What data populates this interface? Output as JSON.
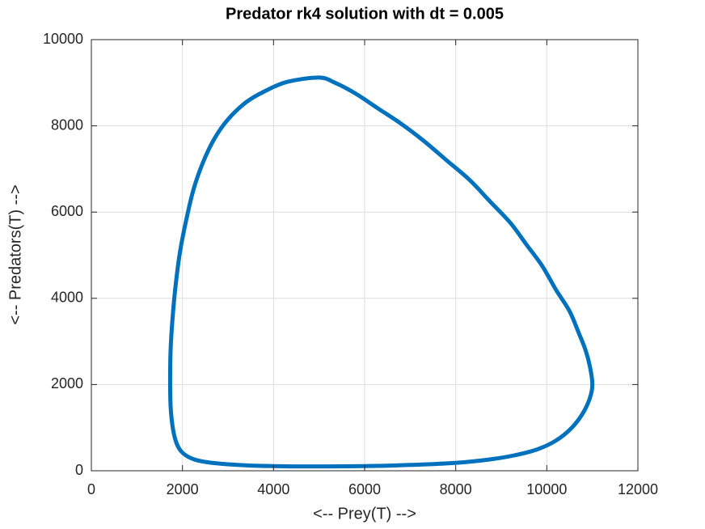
{
  "chart_data": {
    "type": "line",
    "title": "Predator rk4 solution with dt = 0.005",
    "xlabel": "<-- Prey(T) -->",
    "ylabel": "<-- Predators(T) -->",
    "xlim": [
      0,
      12000
    ],
    "ylim": [
      0,
      10000
    ],
    "xticks": [
      0,
      2000,
      4000,
      6000,
      8000,
      10000,
      12000
    ],
    "yticks": [
      0,
      2000,
      4000,
      6000,
      8000,
      10000
    ],
    "xtick_labels": [
      "0",
      "2000",
      "4000",
      "6000",
      "8000",
      "10000",
      "12000"
    ],
    "ytick_labels": [
      "0",
      "2000",
      "4000",
      "6000",
      "8000",
      "10000"
    ],
    "grid": true,
    "series": [
      {
        "color": "#0072bd",
        "x": [
          5000,
          4300,
          3800,
          3400,
          3000,
          2700,
          2450,
          2250,
          2100,
          1950,
          1850,
          1780,
          1740,
          1730,
          1740,
          1780,
          1850,
          1950,
          2100,
          2300,
          2600,
          3000,
          3500,
          4000,
          4600,
          5200,
          5800,
          6400,
          7000,
          7600,
          8200,
          8800,
          9300,
          9800,
          10200,
          10550,
          10800,
          10950,
          11000,
          10950,
          10850,
          10700,
          10500,
          10200,
          9900,
          9550,
          9200,
          8750,
          8300,
          7800,
          7300,
          6800,
          6300,
          5800,
          5350,
          5000
        ],
        "y": [
          9120,
          9020,
          8800,
          8550,
          8150,
          7700,
          7150,
          6550,
          5900,
          5100,
          4300,
          3500,
          2800,
          2100,
          1500,
          1050,
          700,
          480,
          340,
          250,
          190,
          150,
          120,
          108,
          100,
          100,
          105,
          115,
          135,
          160,
          200,
          270,
          360,
          500,
          700,
          1000,
          1350,
          1700,
          2000,
          2400,
          2800,
          3200,
          3700,
          4200,
          4750,
          5250,
          5750,
          6250,
          6750,
          7200,
          7650,
          8050,
          8400,
          8750,
          9000,
          9120
        ]
      }
    ]
  }
}
